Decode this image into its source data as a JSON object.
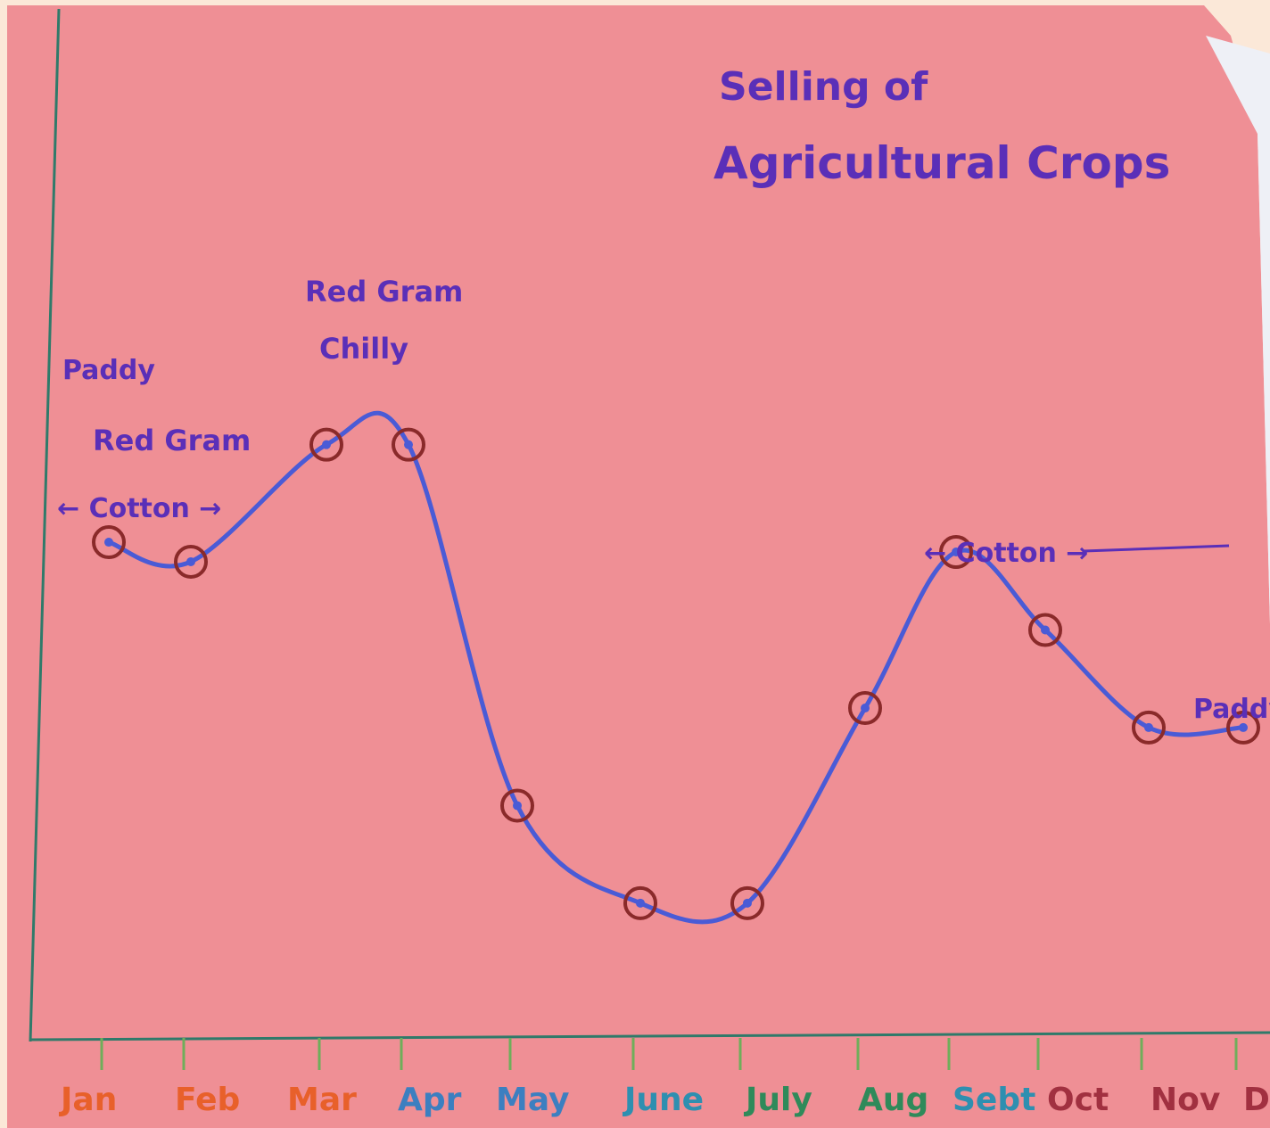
{
  "chart_data": {
    "type": "line",
    "title_line1": "Selling of",
    "title_line2": "Agricultural Crops",
    "categories": [
      "Jan",
      "Feb",
      "Mar",
      "Apr",
      "May",
      "June",
      "July",
      "Aug",
      "Sebt",
      "Oct",
      "Nov",
      "D"
    ],
    "values": [
      5.1,
      4.9,
      6.1,
      6.1,
      2.4,
      1.4,
      1.4,
      3.4,
      5.0,
      4.2,
      3.2,
      3.2
    ],
    "ylim": [
      0,
      10
    ],
    "grid": false,
    "legend": "none",
    "annotations": {
      "paddy_jan": "Paddy",
      "redgram_jan": "Red Gram",
      "cotton_jan": "← Cotton →",
      "redgram_mar": "Red Gram",
      "chilly_mar": "Chilly",
      "cotton_sep": "← Cotton →",
      "paddy_dec": "Paddy"
    },
    "colors": {
      "paper": "#ef8f95",
      "line": "#4a5bd6",
      "marker_ring": "#8a2a2a",
      "text": "#5a2fb8",
      "axis": "#2f7a6a"
    },
    "tick_colors": [
      "#e8602a",
      "#e8602a",
      "#e8602a",
      "#3c7fc0",
      "#3c7fc0",
      "#2e8fb0",
      "#2f8a5a",
      "#2f8a5a",
      "#2e8fb0",
      "#a13040",
      "#a13040",
      "#a13040"
    ]
  }
}
